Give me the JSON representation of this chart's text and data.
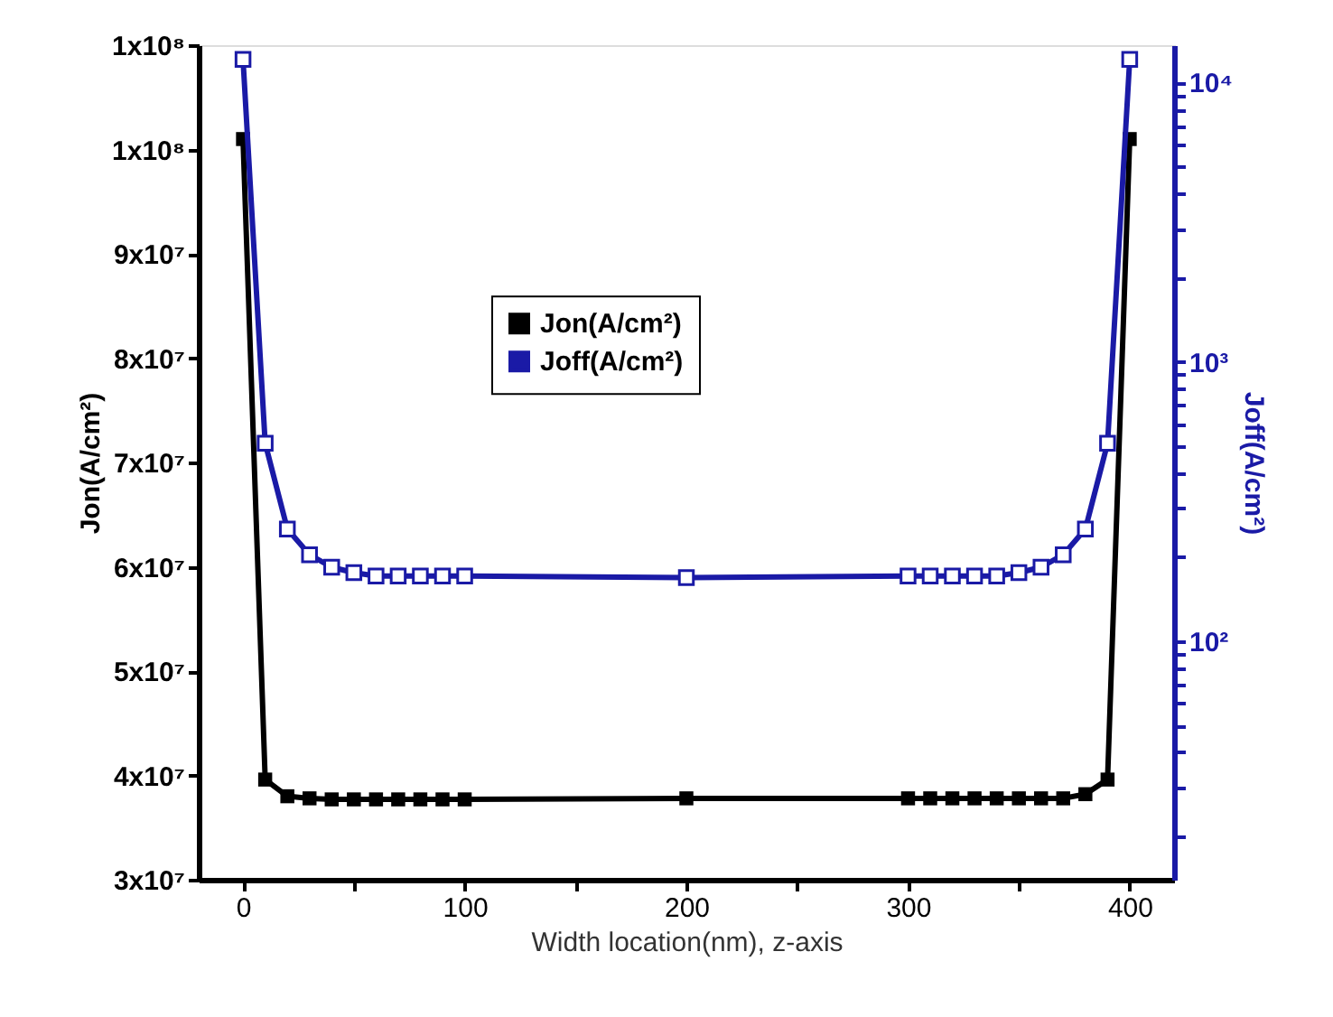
{
  "chart_data": {
    "type": "line",
    "xlabel": "Width location(nm), z-axis",
    "ylabel": "Jon(A/cm²)",
    "y2label": "Joff(A/cm²)",
    "x": [
      0,
      10,
      20,
      30,
      40,
      50,
      60,
      70,
      80,
      90,
      100,
      200,
      300,
      310,
      320,
      330,
      340,
      350,
      360,
      370,
      380,
      390,
      400
    ],
    "series": [
      {
        "name": "Jon(A/cm²)",
        "color": "#000000",
        "values": [
          101000000.0,
          39600000.0,
          38000000.0,
          37800000.0,
          37700000.0,
          37700000.0,
          37700000.0,
          37700000.0,
          37700000.0,
          37700000.0,
          37700000.0,
          37800000.0,
          37800000.0,
          37800000.0,
          37800000.0,
          37800000.0,
          37800000.0,
          37800000.0,
          37800000.0,
          37800000.0,
          38200000.0,
          39600000.0,
          101000000.0
        ]
      },
      {
        "name": "Joff(A/cm²)",
        "color": "#1a1aa6",
        "axis": "y2",
        "values": [
          12100,
          511,
          252,
          204,
          184,
          176,
          171,
          171,
          171,
          171,
          171,
          169,
          171,
          171,
          171,
          171,
          171,
          176,
          184,
          204,
          252,
          511,
          12100
        ]
      }
    ],
    "xlim": [
      -20,
      420
    ],
    "xticks": [
      0,
      {
        "value": 50,
        "label": null
      },
      100,
      {
        "value": 150,
        "label": null
      },
      200,
      {
        "value": 250,
        "label": null
      },
      300,
      {
        "value": 350,
        "label": null
      },
      400
    ],
    "ylim": [
      30000000.0,
      110000000.0
    ],
    "yticks": [
      {
        "value": 30000000.0,
        "label": "3x10⁷"
      },
      {
        "value": 40000000.0,
        "label": "4x10⁷"
      },
      {
        "value": 50000000.0,
        "label": "5x10⁷"
      },
      {
        "value": 60000000.0,
        "label": "6x10⁷"
      },
      {
        "value": 70000000.0,
        "label": "7x10⁷"
      },
      {
        "value": 80000000.0,
        "label": "8x10⁷"
      },
      {
        "value": 90000000.0,
        "label": "9x10⁷"
      },
      {
        "value": 100000000.0,
        "label": "1x10⁸"
      },
      {
        "value": 110000000.0,
        "label": "1x10⁸"
      }
    ],
    "y2lim": [
      14,
      13600
    ],
    "y2ticks": [
      {
        "value": 20,
        "label": null
      },
      {
        "value": 30,
        "label": null
      },
      {
        "value": 40,
        "label": null
      },
      {
        "value": 50,
        "label": null
      },
      {
        "value": 60,
        "label": null
      },
      {
        "value": 70,
        "label": null
      },
      {
        "value": 80,
        "label": null
      },
      {
        "value": 90,
        "label": null
      },
      {
        "value": 100,
        "label": "10²"
      },
      {
        "value": 200,
        "label": null
      },
      {
        "value": 300,
        "label": null
      },
      {
        "value": 400,
        "label": null
      },
      {
        "value": 500,
        "label": null
      },
      {
        "value": 600,
        "label": null
      },
      {
        "value": 700,
        "label": null
      },
      {
        "value": 800,
        "label": null
      },
      {
        "value": 900,
        "label": null
      },
      {
        "value": 1000,
        "label": "10³"
      },
      {
        "value": 2000,
        "label": null
      },
      {
        "value": 3000,
        "label": null
      },
      {
        "value": 4000,
        "label": null
      },
      {
        "value": 5000,
        "label": null
      },
      {
        "value": 6000,
        "label": null
      },
      {
        "value": 7000,
        "label": null
      },
      {
        "value": 8000,
        "label": null
      },
      {
        "value": 9000,
        "label": null
      },
      {
        "value": 10000,
        "label": "10⁴"
      }
    ],
    "log": "y2",
    "grid": false,
    "legend": "top",
    "marker": "square",
    "line_style": "solid"
  }
}
